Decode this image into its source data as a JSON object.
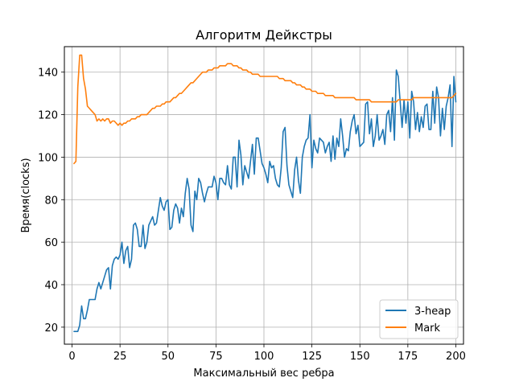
{
  "chart_data": {
    "type": "line",
    "title": "Алгоритм Дейкстры",
    "xlabel": "Максимальный вес ребра",
    "ylabel": "Время(clocks)",
    "xlim": [
      -4,
      204
    ],
    "ylim": [
      12,
      152
    ],
    "xticks": [
      0,
      25,
      50,
      75,
      100,
      125,
      150,
      175,
      200
    ],
    "yticks": [
      20,
      40,
      60,
      80,
      100,
      120,
      140
    ],
    "grid": true,
    "legend": "bottom-right",
    "x_start": 1,
    "series": [
      {
        "name": "3-heap",
        "color": "#1f77b4",
        "values": [
          18,
          18,
          18,
          21,
          30,
          24,
          24,
          28,
          33,
          33,
          33,
          33,
          38,
          41,
          38,
          41,
          44,
          47,
          48,
          38,
          49,
          52,
          53,
          52,
          54,
          60,
          50,
          56,
          58,
          48,
          52,
          68,
          69,
          66,
          58,
          58,
          68,
          57,
          60,
          68,
          70,
          72,
          68,
          69,
          75,
          81,
          77,
          75,
          79,
          80,
          66,
          67,
          75,
          78,
          76,
          69,
          76,
          72,
          83,
          90,
          85,
          68,
          65,
          84,
          80,
          90,
          88,
          83,
          79,
          83,
          86,
          86,
          86,
          91,
          88,
          80,
          90,
          90,
          88,
          87,
          96,
          87,
          85,
          100,
          100,
          86,
          108,
          101,
          87,
          96,
          93,
          90,
          98,
          106,
          92,
          109,
          109,
          103,
          97,
          95,
          92,
          88,
          98,
          95,
          96,
          90,
          87,
          86,
          95,
          112,
          114,
          96,
          87,
          84,
          81,
          94,
          100,
          89,
          83,
          100,
          105,
          108,
          109,
          120,
          95,
          108,
          104,
          102,
          109,
          108,
          107,
          102,
          105,
          107,
          98,
          110,
          99,
          109,
          105,
          118,
          110,
          100,
          104,
          103,
          112,
          117,
          120,
          111,
          115,
          105,
          106,
          107,
          125,
          126,
          111,
          118,
          105,
          110,
          120,
          108,
          110,
          113,
          106,
          120,
          122,
          112,
          128,
          108,
          141,
          138,
          126,
          114,
          127,
          116,
          126,
          109,
          131,
          126,
          113,
          121,
          112,
          119,
          114,
          124,
          125,
          113,
          113,
          131,
          116,
          133,
          128,
          110,
          123,
          113,
          124,
          128,
          134,
          105,
          138,
          126
        ]
      },
      {
        "name": "Mark",
        "color": "#ff7f0e",
        "values": [
          97,
          98,
          133,
          148,
          148,
          137,
          132,
          124,
          123,
          122,
          121,
          120,
          117,
          118,
          117,
          118,
          117,
          118,
          118,
          116,
          117,
          117,
          116,
          115,
          116,
          115,
          116,
          116,
          117,
          117,
          118,
          118,
          118,
          119,
          119,
          120,
          120,
          120,
          120,
          121,
          122,
          123,
          123,
          124,
          124,
          124,
          125,
          125,
          126,
          126,
          126,
          127,
          128,
          128,
          129,
          130,
          130,
          131,
          132,
          133,
          134,
          135,
          135,
          136,
          137,
          138,
          139,
          140,
          140,
          140,
          141,
          141,
          141,
          142,
          142,
          142,
          143,
          143,
          143,
          143,
          144,
          144,
          144,
          143,
          143,
          143,
          142,
          142,
          141,
          141,
          141,
          140,
          140,
          139,
          139,
          139,
          139,
          138,
          138,
          138,
          138,
          138,
          138,
          138,
          138,
          138,
          138,
          137,
          137,
          137,
          136,
          136,
          136,
          136,
          135,
          135,
          134,
          134,
          134,
          133,
          133,
          132,
          132,
          132,
          131,
          131,
          131,
          130,
          130,
          130,
          130,
          129,
          129,
          129,
          129,
          129,
          128,
          128,
          128,
          128,
          128,
          128,
          128,
          128,
          128,
          128,
          128,
          127,
          127,
          127,
          127,
          127,
          127,
          127,
          127,
          126,
          126,
          126,
          126,
          126,
          126,
          126,
          126,
          126,
          126,
          126,
          126,
          126,
          126,
          127,
          127,
          127,
          127,
          127,
          127,
          127,
          127,
          128,
          128,
          128,
          128,
          128,
          128,
          128,
          128,
          128,
          128,
          128,
          128,
          128,
          128,
          128,
          128,
          128,
          128,
          128,
          128,
          128,
          129,
          130
        ]
      }
    ]
  }
}
